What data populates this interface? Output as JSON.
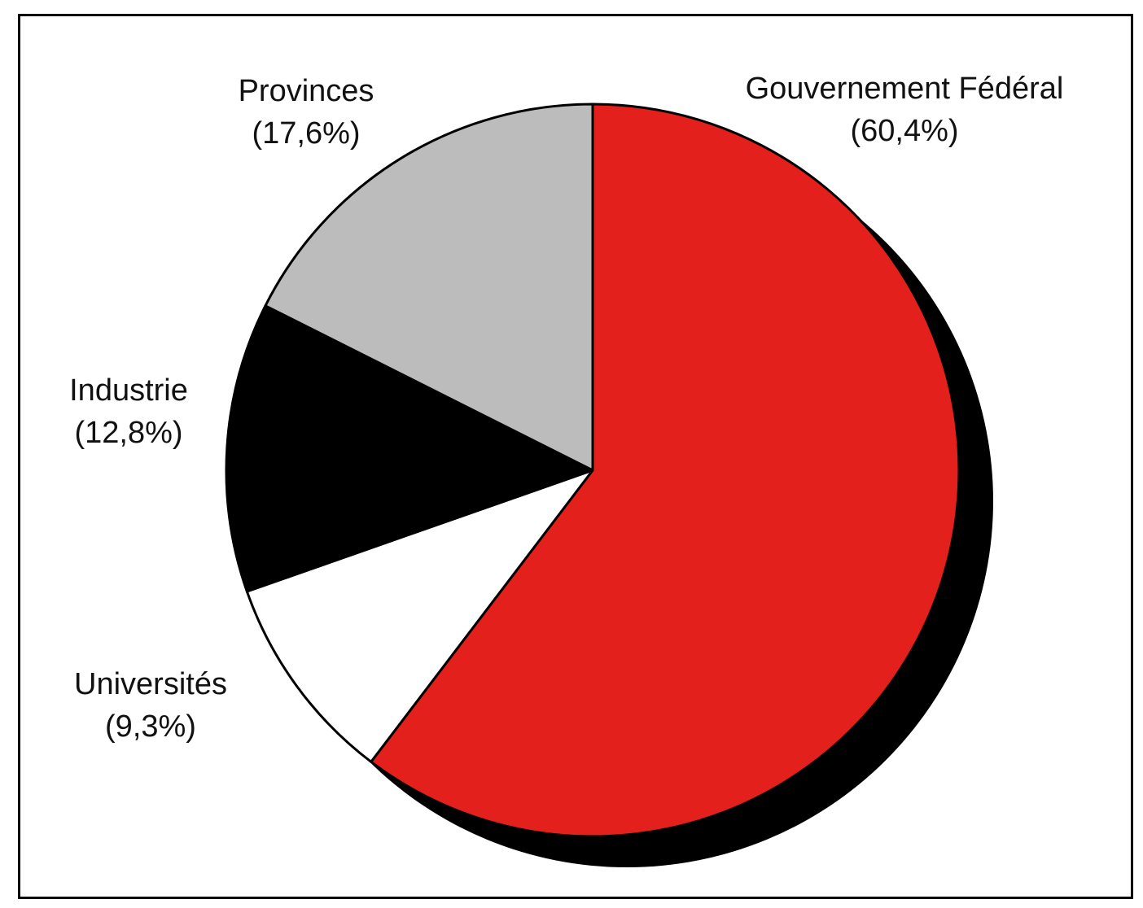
{
  "chart_data": {
    "type": "pie",
    "title": "",
    "slices": [
      {
        "name": "Gouvernement Fédéral",
        "label": "(60,4%)",
        "value": 60.4,
        "color": "#e3201b"
      },
      {
        "name": "Universités",
        "label": "(9,3%)",
        "value": 9.3,
        "color": "#ffffff"
      },
      {
        "name": "Industrie",
        "label": "(12,8%)",
        "value": 12.8,
        "color": "#000000"
      },
      {
        "name": "Provinces",
        "label": "(17,6%)",
        "value": 17.6,
        "color": "#bcbcbc"
      }
    ],
    "start_angle": "12 o'clock",
    "direction": "clockwise",
    "shadow": true,
    "shadow_color": "#000000",
    "outline_color": "#000000"
  }
}
